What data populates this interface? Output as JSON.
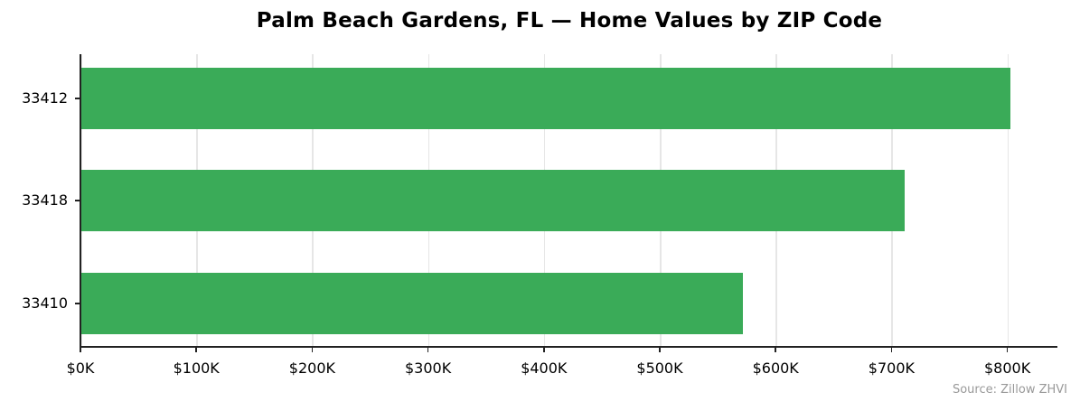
{
  "chart_data": {
    "type": "bar",
    "orientation": "horizontal",
    "title": "Palm Beach Gardens, FL — Home Values by ZIP Code",
    "categories": [
      "33412",
      "33418",
      "33410"
    ],
    "values": [
      803000,
      711000,
      572000
    ],
    "value_format": "$K",
    "xlabel": "",
    "ylabel": "",
    "xlim": [
      0,
      843000
    ],
    "x_ticks": [
      0,
      100000,
      200000,
      300000,
      400000,
      500000,
      600000,
      700000,
      800000
    ],
    "x_tick_labels": [
      "$0K",
      "$100K",
      "$200K",
      "$300K",
      "$400K",
      "$500K",
      "$600K",
      "$700K",
      "$800K"
    ],
    "grid": {
      "x": true,
      "y": false
    },
    "legend": null,
    "bar_color": "#34a853",
    "source": "Source: Zillow ZHVI"
  },
  "title": "Palm Beach Gardens, FL — Home Values by ZIP Code",
  "source": "Source: Zillow ZHVI"
}
